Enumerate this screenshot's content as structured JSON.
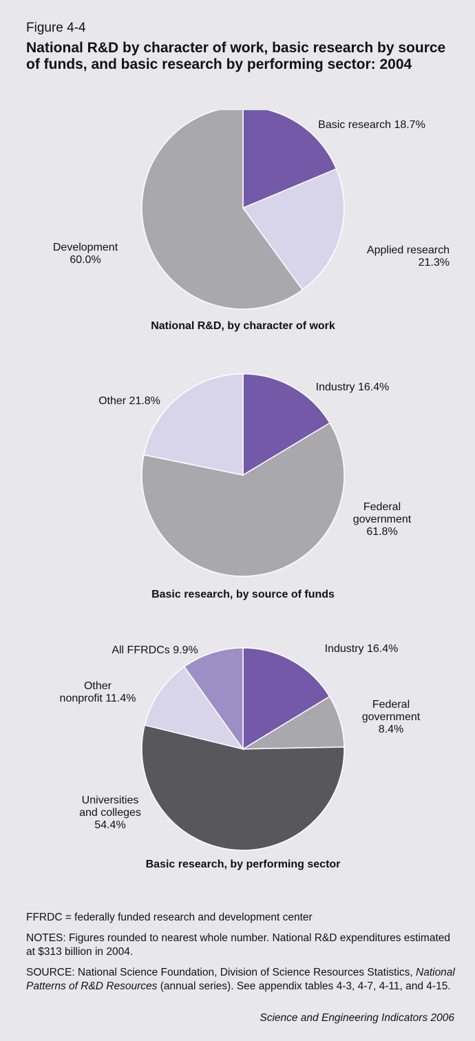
{
  "figure": {
    "label": "Figure 4-4",
    "title": "National R&D by character of work, basic research by source of funds, and basic research by performing sector: 2004"
  },
  "chart_data": [
    {
      "type": "pie",
      "title": "National R&D, by character of work",
      "slices": [
        {
          "name": "Basic research",
          "value": 18.7,
          "color": "#7459a8",
          "label_lines": [
            "Basic research 18.7%"
          ]
        },
        {
          "name": "Applied research",
          "value": 21.3,
          "color": "#d8d4ea",
          "label_lines": [
            "Applied research",
            "21.3%"
          ]
        },
        {
          "name": "Development",
          "value": 60.0,
          "color": "#a9a9ad",
          "label_lines": [
            "Development",
            "60.0%"
          ]
        }
      ]
    },
    {
      "type": "pie",
      "title": "Basic research, by source of funds",
      "slices": [
        {
          "name": "Industry",
          "value": 16.4,
          "color": "#7459a8",
          "label_lines": [
            "Industry 16.4%"
          ]
        },
        {
          "name": "Federal government",
          "value": 61.8,
          "color": "#a9a9ad",
          "label_lines": [
            "Federal",
            "government",
            "61.8%"
          ]
        },
        {
          "name": "Other",
          "value": 21.8,
          "color": "#d8d4ea",
          "label_lines": [
            "Other 21.8%"
          ]
        }
      ]
    },
    {
      "type": "pie",
      "title": "Basic research, by performing sector",
      "slices": [
        {
          "name": "Industry",
          "value": 16.4,
          "color": "#7459a8",
          "label_lines": [
            "Industry 16.4%"
          ]
        },
        {
          "name": "Federal government",
          "value": 8.4,
          "color": "#a9a9ad",
          "label_lines": [
            "Federal",
            "government",
            "8.4%"
          ]
        },
        {
          "name": "Universities and colleges",
          "value": 54.4,
          "color": "#58585c",
          "label_lines": [
            "Universities",
            "and colleges",
            "54.4%"
          ]
        },
        {
          "name": "Other nonprofit",
          "value": 11.4,
          "color": "#d8d4ea",
          "label_lines": [
            "Other",
            "nonprofit 11.4%"
          ]
        },
        {
          "name": "All FFRDCs",
          "value": 9.9,
          "color": "#9d8fc6",
          "label_lines": [
            "All FFRDCs 9.9%"
          ]
        }
      ]
    }
  ],
  "notes": {
    "ffrdc": "FFRDC = federally funded research and development center",
    "notes": "NOTES: Figures rounded to nearest whole number. National R&D expenditures estimated at $313 billion in 2004.",
    "source_prefix": "SOURCE: National Science Foundation, Division of Science Resources Statistics, ",
    "source_title": "National Patterns of R&D Resources",
    "source_suffix": " (annual series). See appendix tables 4-3, 4-7, 4-11, and 4-15.",
    "credit": "Science and Engineering Indicators 2006"
  }
}
